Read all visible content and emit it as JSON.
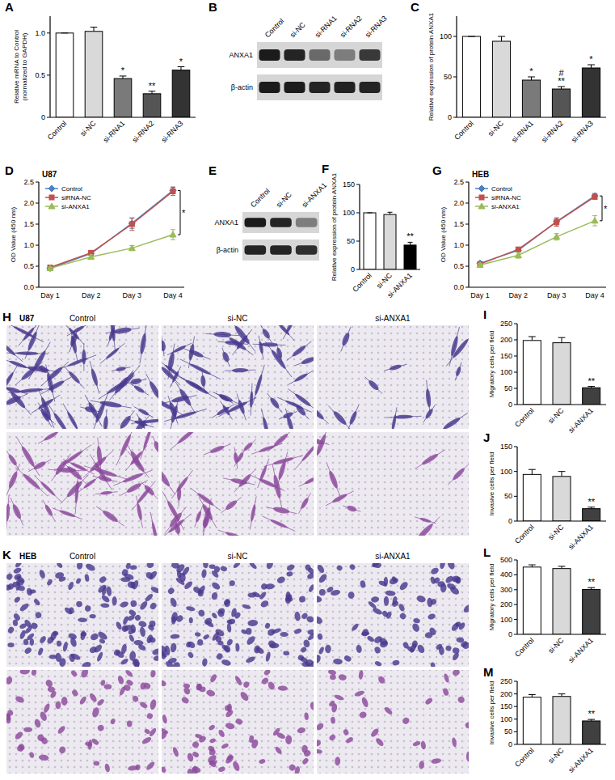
{
  "chart_data": [
    {
      "type": "bar",
      "title": "A",
      "y_label": "Relative mRNA to Control\n(normalized to GAPDH)",
      "categories": [
        "Control",
        "si-NC",
        "si-RNA1",
        "si-RNA2",
        "si-RNA3"
      ],
      "values": [
        1.0,
        1.02,
        0.46,
        0.28,
        0.56
      ],
      "errors": [
        0,
        0.05,
        0.03,
        0.03,
        0.04
      ],
      "colors": [
        "#ffffff",
        "#d9d9d9",
        "#7a7a7a",
        "#555555",
        "#333333"
      ],
      "ylim": [
        0,
        1.2
      ],
      "yticks": [
        0,
        0.5,
        {
          "value": 1,
          "label": "1.0"
        }
      ],
      "annotations": [
        {
          "category": "si-RNA1",
          "text": "*"
        },
        {
          "category": "si-RNA2",
          "text": "**"
        },
        {
          "category": "si-RNA3",
          "text": "*"
        }
      ]
    },
    {
      "type": "blot",
      "title": "B",
      "lanes": [
        "Control",
        "si-NC",
        "si-RNA1",
        "si-RNA2",
        "si-RNA3"
      ],
      "rows": [
        {
          "name": "ANXA1",
          "intensity": [
            0.95,
            0.9,
            0.55,
            0.45,
            0.8
          ]
        },
        {
          "name": "β-actin",
          "intensity": [
            0.95,
            0.95,
            0.9,
            0.92,
            0.9
          ]
        }
      ]
    },
    {
      "type": "bar",
      "title": "C",
      "y_label": "Relative expression of protein ANXA1",
      "categories": [
        "Control",
        "si-NC",
        "si-RNA1",
        "si-RNA2",
        "si-RNA3"
      ],
      "values": [
        100,
        94,
        46,
        35,
        61
      ],
      "errors": [
        0,
        6,
        4,
        3,
        4
      ],
      "colors": [
        "#ffffff",
        "#d9d9d9",
        "#7a7a7a",
        "#555555",
        "#333333"
      ],
      "ylim": [
        0,
        125
      ],
      "yticks": [
        0,
        50,
        100
      ],
      "annotations": [
        {
          "category": "si-RNA1",
          "text": "*"
        },
        {
          "category": "si-RNA2",
          "text": "**"
        },
        {
          "category": "si-RNA2",
          "text": "#"
        },
        {
          "category": "si-RNA3",
          "text": "*"
        }
      ]
    },
    {
      "type": "line",
      "title": "D",
      "subtitle": "U87",
      "y_label": "OD Value (450 nm)",
      "categories": [
        "Day 1",
        "Day 2",
        "Day 3",
        "Day 4"
      ],
      "series": [
        {
          "name": "Control",
          "color": "#4f81bd",
          "marker": "diamond",
          "values": [
            0.45,
            0.8,
            1.52,
            2.3
          ],
          "errors": [
            0.03,
            0.04,
            0.12,
            0.08
          ]
        },
        {
          "name": "siRNA-NC",
          "color": "#c0504d",
          "marker": "square",
          "values": [
            0.47,
            0.82,
            1.5,
            2.28
          ],
          "errors": [
            0.03,
            0.05,
            0.15,
            0.1
          ]
        },
        {
          "name": "si-ANXA1",
          "color": "#9bbb59",
          "marker": "triangle",
          "values": [
            0.45,
            0.72,
            0.93,
            1.25
          ],
          "errors": [
            0.03,
            0.05,
            0.06,
            0.12
          ]
        }
      ],
      "ylim": [
        0,
        2.5
      ],
      "yticks": [
        {
          "value": 0,
          "label": "0.0"
        },
        0.5,
        {
          "value": 1,
          "label": "1.0"
        },
        1.5,
        {
          "value": 2,
          "label": "2.0"
        },
        2.5
      ],
      "legend": "upper left",
      "annotations": [
        {
          "text": "*"
        }
      ]
    },
    {
      "type": "blot",
      "title": "E",
      "lanes": [
        "Control",
        "si-NC",
        "si-ANXA1"
      ],
      "rows": [
        {
          "name": "ANXA1",
          "intensity": [
            0.95,
            0.9,
            0.45
          ]
        },
        {
          "name": "β-actin",
          "intensity": [
            0.9,
            0.9,
            0.85
          ]
        }
      ]
    },
    {
      "type": "bar",
      "title": "F",
      "y_label": "Relative expression of protein ANXA1",
      "categories": [
        "Control",
        "si-NC",
        "si-ANXA1"
      ],
      "values": [
        100,
        97,
        43
      ],
      "errors": [
        0,
        4,
        5
      ],
      "colors": [
        "#ffffff",
        "#d9d9d9",
        "#000000"
      ],
      "ylim": [
        0,
        150
      ],
      "yticks": [
        0,
        50,
        100,
        150
      ],
      "annotations": [
        {
          "category": "si-ANXA1",
          "text": "**"
        }
      ]
    },
    {
      "type": "line",
      "title": "G",
      "subtitle": "HEB",
      "y_label": "OD Value (450 nm)",
      "categories": [
        "Day 1",
        "Day 2",
        "Day 3",
        "Day 4"
      ],
      "series": [
        {
          "name": "Control",
          "color": "#4f81bd",
          "marker": "diamond",
          "values": [
            0.57,
            0.88,
            1.56,
            2.17
          ],
          "errors": [
            0.04,
            0.04,
            0.08,
            0.06
          ]
        },
        {
          "name": "siRNA-NC",
          "color": "#c0504d",
          "marker": "square",
          "values": [
            0.55,
            0.9,
            1.55,
            2.15
          ],
          "errors": [
            0.04,
            0.04,
            0.1,
            0.06
          ]
        },
        {
          "name": "si-ANXA1",
          "color": "#9bbb59",
          "marker": "triangle",
          "values": [
            0.53,
            0.76,
            1.2,
            1.58
          ],
          "errors": [
            0.04,
            0.07,
            0.08,
            0.12
          ]
        }
      ],
      "ylim": [
        0,
        2.5
      ],
      "yticks": [
        {
          "value": 0,
          "label": "0.0"
        },
        0.5,
        {
          "value": 1,
          "label": "1.0"
        },
        1.5,
        {
          "value": 2,
          "label": "2.0"
        },
        2.5
      ],
      "legend": "upper left",
      "annotations": [
        {
          "text": "*"
        }
      ]
    },
    {
      "type": "micrograph",
      "title": "H",
      "subtitle": "U87",
      "columns": [
        "Control",
        "si-NC",
        "si-ANXA1"
      ]
    },
    {
      "type": "bar",
      "title": "I",
      "y_label": "Migratory cells per field",
      "categories": [
        "Control",
        "si-NC",
        "si-ANXA1"
      ],
      "values": [
        198,
        191,
        52
      ],
      "errors": [
        12,
        16,
        4
      ],
      "colors": [
        "#ffffff",
        "#d9d9d9",
        "#404040"
      ],
      "ylim": [
        0,
        250
      ],
      "yticks": [
        0,
        50,
        100,
        150,
        200,
        250
      ],
      "annotations": [
        {
          "category": "si-ANXA1",
          "text": "**"
        }
      ]
    },
    {
      "type": "bar",
      "title": "J",
      "y_label": "Invasive cells per field",
      "categories": [
        "Control",
        "si-NC",
        "si-ANXA1"
      ],
      "values": [
        94,
        90,
        25
      ],
      "errors": [
        10,
        10,
        3
      ],
      "colors": [
        "#ffffff",
        "#d9d9d9",
        "#404040"
      ],
      "ylim": [
        0,
        150
      ],
      "yticks": [
        0,
        50,
        100,
        150
      ],
      "annotations": [
        {
          "category": "si-ANXA1",
          "text": "**"
        }
      ]
    },
    {
      "type": "micrograph",
      "title": "K",
      "subtitle": "HEB",
      "columns": [
        "Control",
        "si-NC",
        "si-ANXA1"
      ]
    },
    {
      "type": "bar",
      "title": "L",
      "y_label": "Migratory cells per field",
      "categories": [
        "Control",
        "si-NC",
        "si-ANXA1"
      ],
      "values": [
        452,
        442,
        302
      ],
      "errors": [
        15,
        15,
        12
      ],
      "colors": [
        "#ffffff",
        "#d9d9d9",
        "#404040"
      ],
      "ylim": [
        0,
        500
      ],
      "yticks": [
        0,
        100,
        200,
        300,
        400,
        500
      ],
      "annotations": [
        {
          "category": "si-ANXA1",
          "text": "**"
        }
      ]
    },
    {
      "type": "bar",
      "title": "M",
      "y_label": "Invasive cells per field",
      "categories": [
        "Control",
        "si-NC",
        "si-ANXA1"
      ],
      "values": [
        187,
        190,
        93
      ],
      "errors": [
        10,
        10,
        6
      ],
      "colors": [
        "#ffffff",
        "#d9d9d9",
        "#404040"
      ],
      "ylim": [
        0,
        250
      ],
      "yticks": [
        0,
        50,
        100,
        150,
        200,
        250
      ],
      "annotations": [
        {
          "category": "si-ANXA1",
          "text": "**"
        }
      ]
    }
  ]
}
